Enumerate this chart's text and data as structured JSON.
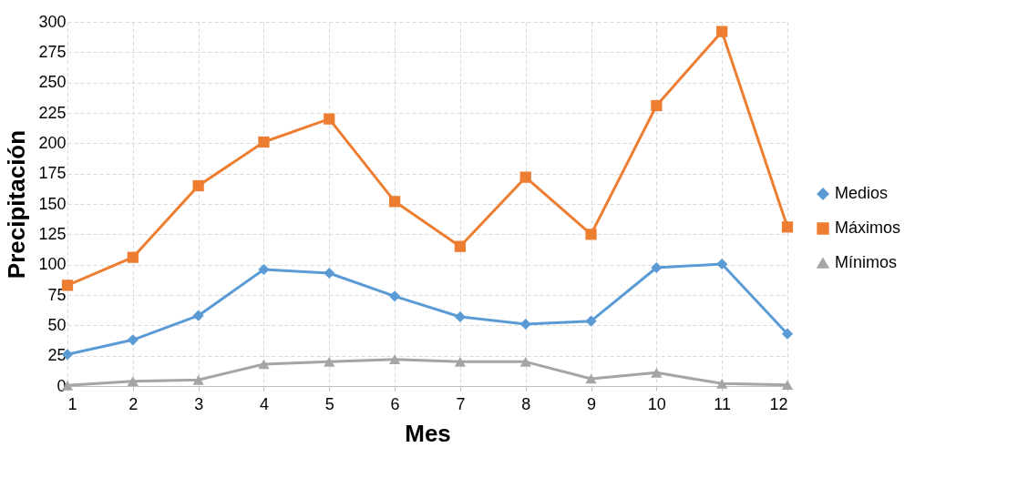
{
  "chart_data": {
    "type": "line",
    "xlabel": "Mes",
    "ylabel": "Precipitación",
    "x": [
      1,
      2,
      3,
      4,
      5,
      6,
      7,
      8,
      9,
      10,
      11,
      12
    ],
    "xlim": [
      1,
      12
    ],
    "xticks": [
      1,
      2,
      3,
      4,
      5,
      6,
      7,
      8,
      9,
      10,
      11,
      12
    ],
    "ylim": [
      0,
      300
    ],
    "yticks": [
      0,
      25,
      50,
      75,
      100,
      125,
      150,
      175,
      200,
      225,
      250,
      275,
      300
    ],
    "grid": true,
    "legend": "right",
    "line_style": "solid",
    "series": [
      {
        "name": "Medios",
        "color": "#5b9bd5",
        "marker": "diamond",
        "values": [
          26,
          38,
          58,
          96,
          93,
          74,
          57,
          51,
          53.5,
          97.5,
          100.5,
          43
        ]
      },
      {
        "name": "Máximos",
        "color": "#ed7d31",
        "marker": "square",
        "values": [
          83,
          106,
          165,
          201,
          220,
          152,
          115,
          172,
          125,
          231,
          292,
          131
        ]
      },
      {
        "name": "Mínimos",
        "color": "#a5a5a5",
        "marker": "triangle",
        "values": [
          0.5,
          4,
          5,
          18,
          20,
          22,
          20,
          20,
          6,
          11,
          2,
          1
        ]
      }
    ]
  }
}
